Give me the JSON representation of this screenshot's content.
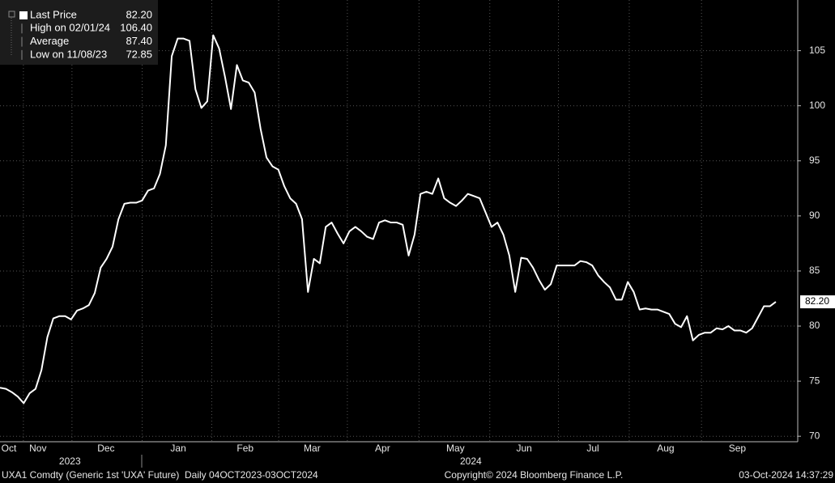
{
  "chart_data": {
    "type": "line",
    "legend": [
      {
        "label": "Last Price",
        "value": "82.20"
      },
      {
        "label": "High on 02/01/24",
        "value": "106.40"
      },
      {
        "label": "Average",
        "value": "87.40"
      },
      {
        "label": "Low on 11/08/23",
        "value": "72.85"
      }
    ],
    "series": [
      {
        "name": "Last Price",
        "color": "#ffffff",
        "values": [
          74.4,
          74.3,
          74.0,
          73.6,
          73.0,
          73.9,
          74.3,
          76.0,
          79.0,
          80.7,
          80.9,
          80.9,
          80.6,
          81.4,
          81.6,
          81.9,
          83.0,
          85.3,
          86.1,
          87.2,
          89.7,
          91.1,
          91.2,
          91.2,
          91.4,
          92.3,
          92.5,
          93.8,
          96.4,
          104.5,
          106.1,
          106.1,
          105.9,
          101.5,
          99.8,
          100.4,
          106.4,
          105.2,
          102.6,
          99.7,
          103.7,
          102.3,
          102.1,
          101.2,
          97.9,
          95.3,
          94.5,
          94.2,
          92.7,
          91.6,
          91.1,
          89.7,
          83.1,
          86.1,
          85.7,
          89.0,
          89.4,
          88.4,
          87.5,
          88.6,
          89.0,
          88.6,
          88.1,
          87.9,
          89.4,
          89.6,
          89.4,
          89.4,
          89.2,
          86.4,
          88.3,
          92.0,
          92.2,
          92.0,
          93.4,
          91.6,
          91.2,
          90.9,
          91.4,
          92.0,
          91.8,
          91.6,
          90.3,
          89.0,
          89.4,
          88.3,
          86.4,
          83.1,
          86.2,
          86.1,
          85.3,
          84.2,
          83.3,
          83.8,
          85.5,
          85.5,
          85.5,
          85.5,
          85.9,
          85.8,
          85.5,
          84.6,
          84.0,
          83.5,
          82.4,
          82.4,
          84.0,
          83.1,
          81.5,
          81.6,
          81.5,
          81.5,
          81.3,
          81.1,
          80.2,
          79.9,
          80.9,
          78.7,
          79.2,
          79.4,
          79.4,
          79.8,
          79.7,
          80.0,
          79.6,
          79.6,
          79.4,
          79.8,
          80.8,
          81.8,
          81.8,
          82.2
        ]
      }
    ],
    "xlim": [
      0,
      134.7
    ],
    "xticks": [
      {
        "value": 1.5,
        "label": "Oct"
      },
      {
        "value": 6.4,
        "label": "Nov"
      },
      {
        "value": 17.9,
        "label": "Dec"
      },
      {
        "value": 30.1,
        "label": "Jan"
      },
      {
        "value": 41.4,
        "label": "Feb"
      },
      {
        "value": 52.7,
        "label": "Mar"
      },
      {
        "value": 64.6,
        "label": "Apr"
      },
      {
        "value": 76.9,
        "label": "May"
      },
      {
        "value": 88.5,
        "label": "Jun"
      },
      {
        "value": 100.1,
        "label": "Jul"
      },
      {
        "value": 112.4,
        "label": "Aug"
      },
      {
        "value": 124.5,
        "label": "Sep"
      }
    ],
    "year_ticks": [
      {
        "value": 11.8,
        "label": "2023"
      },
      {
        "value": 79.5,
        "label": "2024"
      }
    ],
    "ylim": [
      69.5,
      109.6
    ],
    "yticks": [
      70,
      75,
      80,
      85,
      90,
      95,
      100,
      105
    ],
    "grid": true,
    "footer": {
      "left": "UXA1 Comdty (Generic 1st 'UXA' Future)  Daily 04OCT2023-03OCT2024",
      "center": "Copyright© 2024 Bloomberg Finance L.P.",
      "right": "03-Oct-2024 14:37:29"
    }
  }
}
